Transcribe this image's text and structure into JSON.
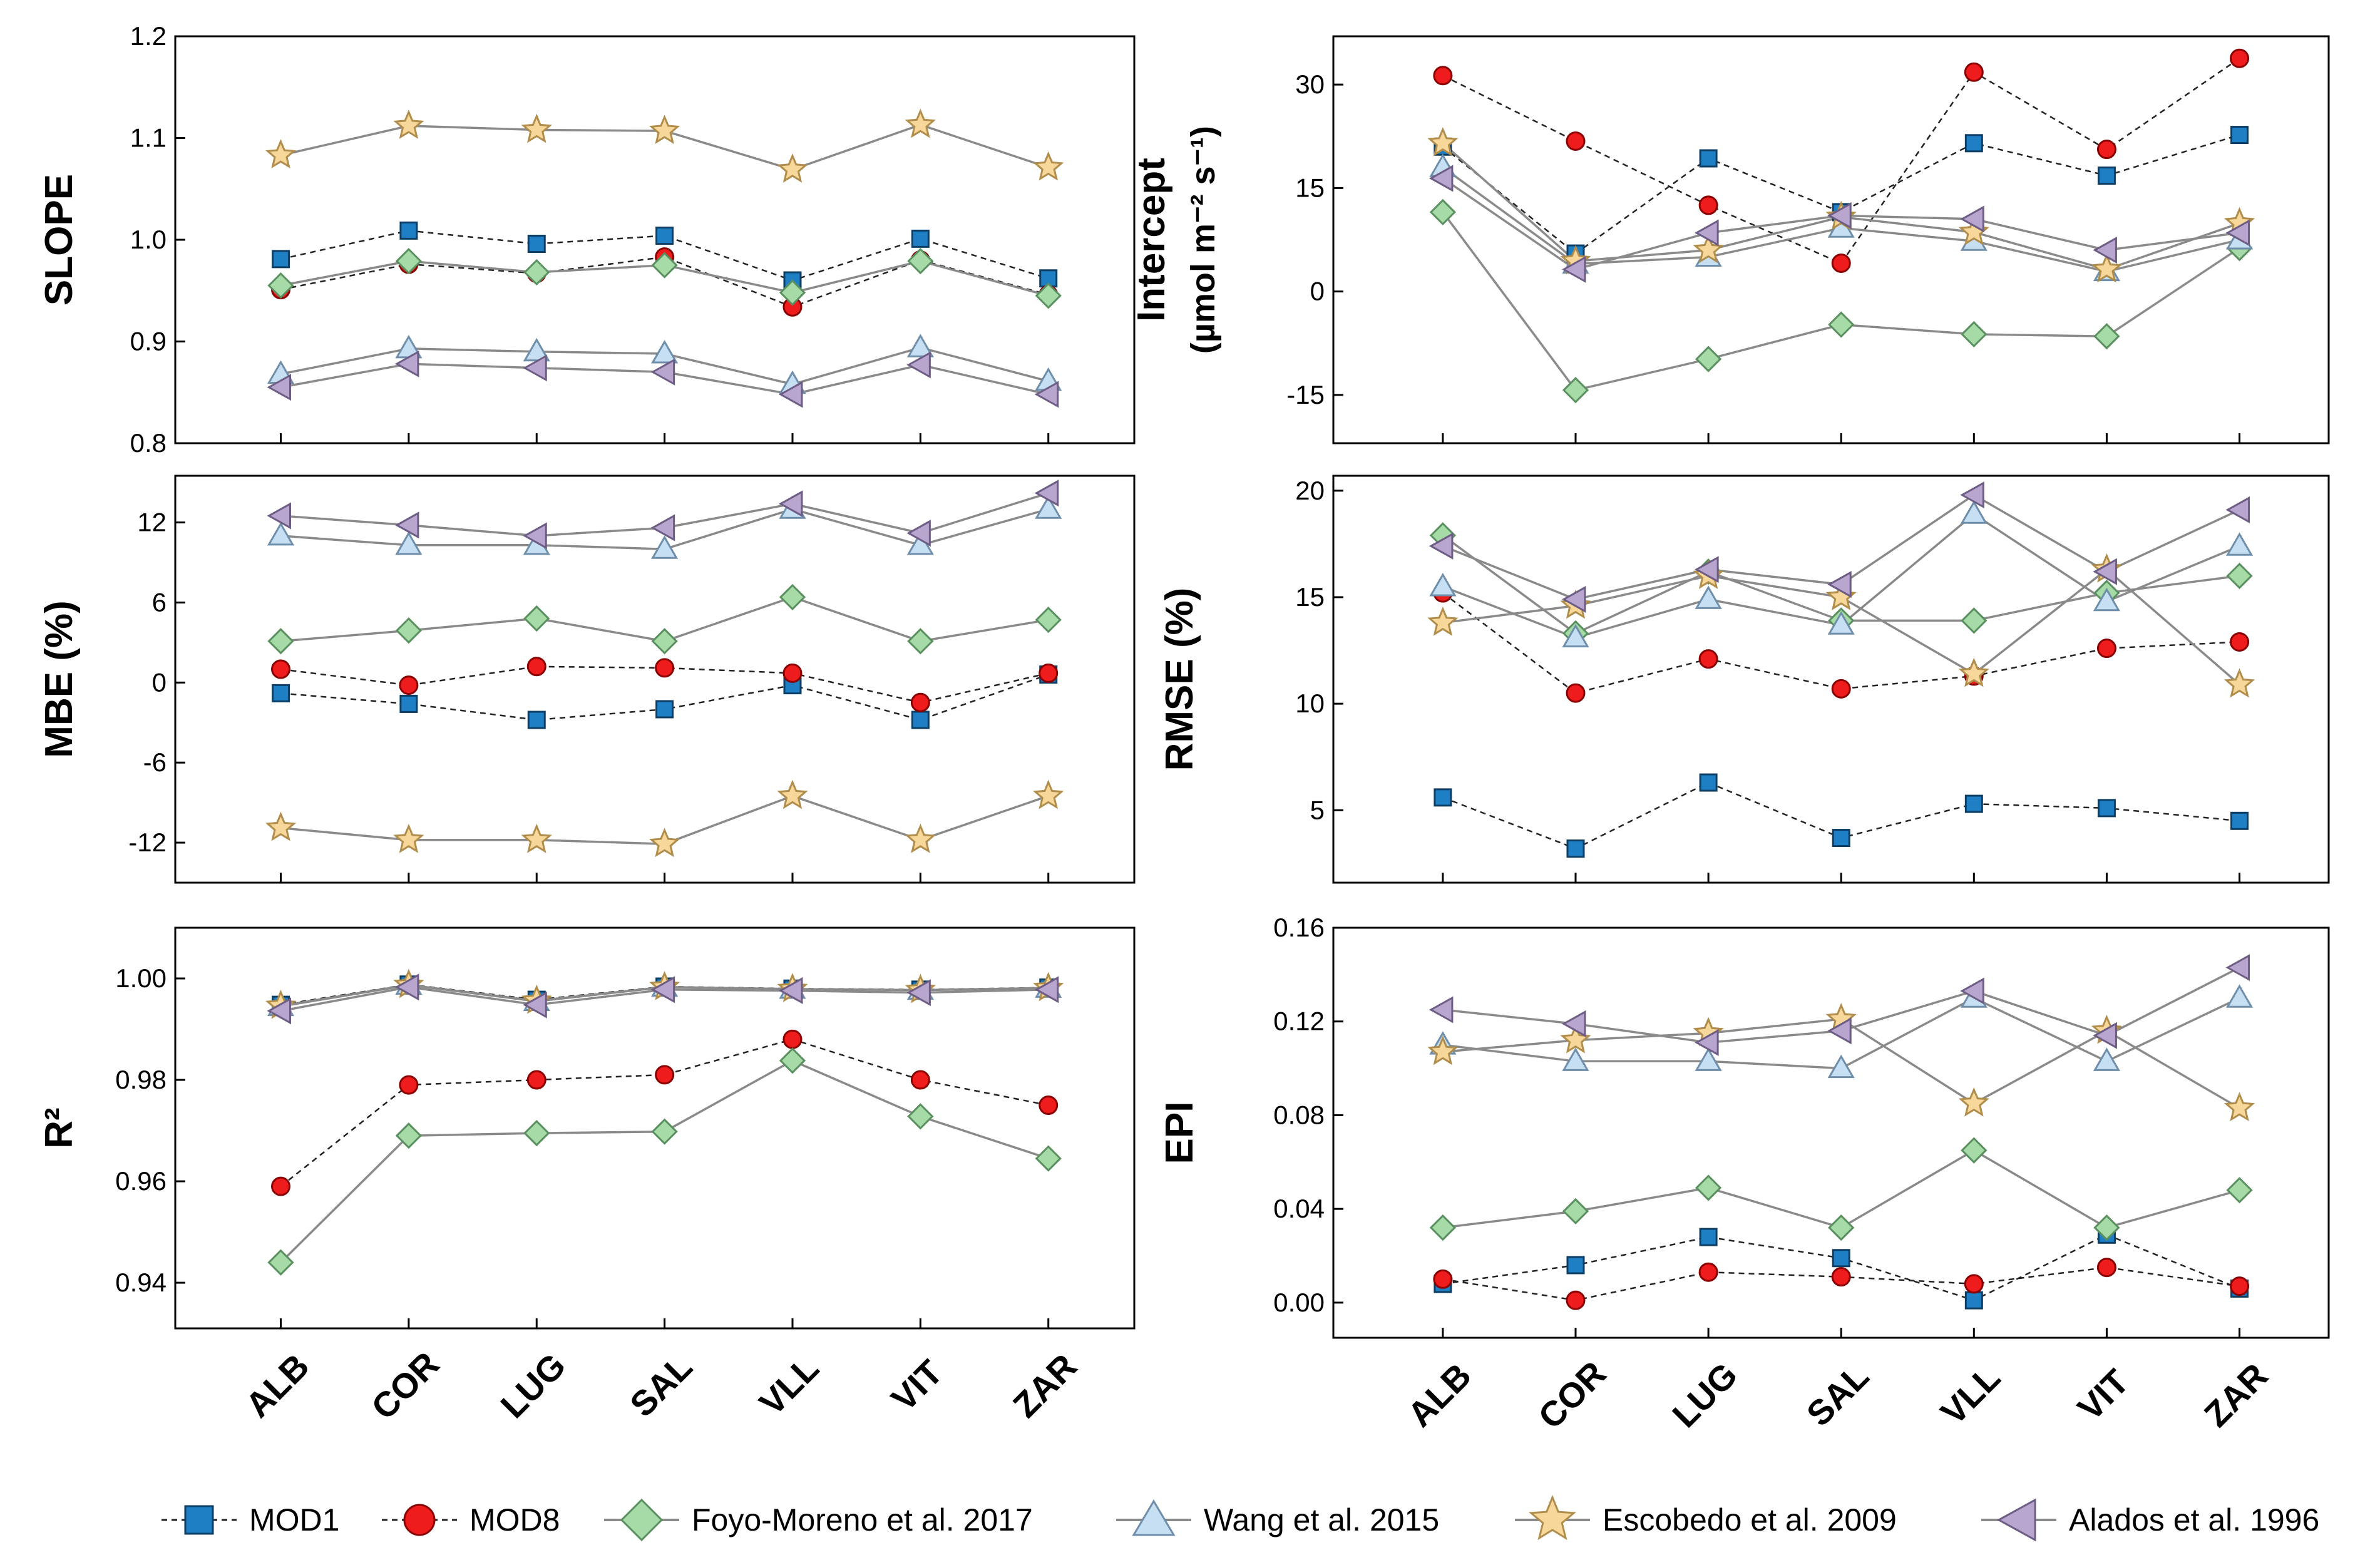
{
  "figure": {
    "categories": [
      "ALB",
      "COR",
      "LUG",
      "SAL",
      "VLL",
      "VIT",
      "ZAR"
    ],
    "series_styles": [
      {
        "name": "MOD1",
        "marker": "square",
        "fill": "#1e7fc4",
        "stroke": "#0d3f66",
        "line": "#222222",
        "dash": true
      },
      {
        "name": "MOD8",
        "marker": "circle",
        "fill": "#ee1c1c",
        "stroke": "#8a0000",
        "line": "#222222",
        "dash": true
      },
      {
        "name": "Foyo-Moreno et al. 2017",
        "marker": "diamond",
        "fill": "#a6dba8",
        "stroke": "#5a9060",
        "line": "#8a8a8a",
        "dash": false
      },
      {
        "name": "Wang et al. 2015",
        "marker": "triangle-up",
        "fill": "#c6dff3",
        "stroke": "#6f8eaa",
        "line": "#8a8a8a",
        "dash": false
      },
      {
        "name": "Escobedo et al. 2009",
        "marker": "star",
        "fill": "#f7d79a",
        "stroke": "#b08d4a",
        "line": "#8a8a8a",
        "dash": false
      },
      {
        "name": "Alados et al. 1996",
        "marker": "triangle-left",
        "fill": "#b9a6cf",
        "stroke": "#6d5d85",
        "line": "#8a8a8a",
        "dash": false
      }
    ]
  },
  "chart_data": [
    {
      "type": "line",
      "ylabel": "SLOPE",
      "ylim": [
        0.8,
        1.2
      ],
      "yticks": [
        0.8,
        0.9,
        1.0,
        1.1,
        1.2
      ],
      "ytick_labels": [
        "0.8",
        "0.9",
        "1.0",
        "1.1",
        "1.2"
      ],
      "categories": [
        "ALB",
        "COR",
        "LUG",
        "SAL",
        "VLL",
        "VIT",
        "ZAR"
      ],
      "series": [
        {
          "name": "MOD1",
          "values": [
            0.981,
            1.009,
            0.996,
            1.004,
            0.96,
            1.001,
            0.962
          ]
        },
        {
          "name": "MOD8",
          "values": [
            0.951,
            0.976,
            0.967,
            0.983,
            0.934,
            0.98,
            0.946
          ]
        },
        {
          "name": "Foyo-Moreno et al. 2017",
          "values": [
            0.955,
            0.979,
            0.968,
            0.975,
            0.948,
            0.979,
            0.945
          ]
        },
        {
          "name": "Wang et al. 2015",
          "values": [
            0.868,
            0.893,
            0.89,
            0.888,
            0.858,
            0.894,
            0.861
          ]
        },
        {
          "name": "Escobedo et al. 2009",
          "values": [
            1.083,
            1.112,
            1.108,
            1.107,
            1.069,
            1.113,
            1.071
          ]
        },
        {
          "name": "Alados et al. 1996",
          "values": [
            0.855,
            0.878,
            0.874,
            0.87,
            0.848,
            0.877,
            0.848
          ]
        }
      ]
    },
    {
      "type": "line",
      "ylabel": "Intercept",
      "ylabel_line2": "(µmol m⁻² s⁻¹)",
      "ylim": [
        -22,
        37
      ],
      "yticks": [
        -15,
        0,
        15,
        30
      ],
      "ytick_labels": [
        "-15",
        "0",
        "15",
        "30"
      ],
      "categories": [
        "ALB",
        "COR",
        "LUG",
        "SAL",
        "VLL",
        "VIT",
        "ZAR"
      ],
      "series": [
        {
          "name": "MOD1",
          "values": [
            21.0,
            5.5,
            19.3,
            11.5,
            21.5,
            16.8,
            22.7
          ]
        },
        {
          "name": "MOD8",
          "values": [
            31.3,
            21.8,
            12.5,
            4.1,
            31.8,
            20.6,
            33.8
          ]
        },
        {
          "name": "Foyo-Moreno et al. 2017",
          "values": [
            11.5,
            -14.3,
            -9.8,
            -4.8,
            -6.2,
            -6.5,
            6.3
          ]
        },
        {
          "name": "Wang et al. 2015",
          "values": [
            18.0,
            4.0,
            5.0,
            9.2,
            7.3,
            2.9,
            7.5
          ]
        },
        {
          "name": "Escobedo et al. 2009",
          "values": [
            21.5,
            4.4,
            6.0,
            10.8,
            8.6,
            3.2,
            9.9
          ]
        },
        {
          "name": "Alados et al. 1996",
          "values": [
            16.4,
            3.2,
            8.5,
            11.0,
            10.5,
            6.0,
            8.5
          ]
        }
      ]
    },
    {
      "type": "line",
      "ylabel": "MBE (%)",
      "ylim": [
        -15,
        15.5
      ],
      "yticks": [
        -12,
        -6,
        0,
        6,
        12
      ],
      "ytick_labels": [
        "-12",
        "-6",
        "0",
        "6",
        "12"
      ],
      "categories": [
        "ALB",
        "COR",
        "LUG",
        "SAL",
        "VLL",
        "VIT",
        "ZAR"
      ],
      "series": [
        {
          "name": "MOD1",
          "values": [
            -0.8,
            -1.6,
            -2.8,
            -2.0,
            -0.2,
            -2.8,
            0.6
          ]
        },
        {
          "name": "MOD8",
          "values": [
            1.0,
            -0.2,
            1.2,
            1.1,
            0.7,
            -1.5,
            0.7
          ]
        },
        {
          "name": "Foyo-Moreno et al. 2017",
          "values": [
            3.1,
            3.9,
            4.8,
            3.1,
            6.4,
            3.1,
            4.7
          ]
        },
        {
          "name": "Wang et al. 2015",
          "values": [
            11.0,
            10.3,
            10.3,
            10.0,
            13.0,
            10.3,
            13.0
          ]
        },
        {
          "name": "Escobedo et al. 2009",
          "values": [
            -10.9,
            -11.8,
            -11.8,
            -12.1,
            -8.5,
            -11.8,
            -8.5
          ]
        },
        {
          "name": "Alados et al. 1996",
          "values": [
            12.5,
            11.8,
            11.0,
            11.6,
            13.4,
            11.2,
            14.2
          ]
        }
      ]
    },
    {
      "type": "line",
      "ylabel": "RMSE (%)",
      "ylim": [
        1.6,
        20.7
      ],
      "yticks": [
        5,
        10,
        15,
        20
      ],
      "ytick_labels": [
        "5",
        "10",
        "15",
        "20"
      ],
      "categories": [
        "ALB",
        "COR",
        "LUG",
        "SAL",
        "VLL",
        "VIT",
        "ZAR"
      ],
      "series": [
        {
          "name": "MOD1",
          "values": [
            5.6,
            3.2,
            6.3,
            3.7,
            5.3,
            5.1,
            4.5
          ]
        },
        {
          "name": "MOD8",
          "values": [
            15.2,
            10.5,
            12.1,
            10.7,
            11.3,
            12.6,
            12.9
          ]
        },
        {
          "name": "Foyo-Moreno et al. 2017",
          "values": [
            17.9,
            13.3,
            16.2,
            13.9,
            13.9,
            15.2,
            16.0
          ]
        },
        {
          "name": "Wang et al. 2015",
          "values": [
            15.5,
            13.1,
            14.9,
            13.7,
            18.9,
            14.8,
            17.4
          ]
        },
        {
          "name": "Escobedo et al. 2009",
          "values": [
            13.8,
            14.6,
            16.0,
            15.0,
            11.4,
            16.3,
            10.9
          ]
        },
        {
          "name": "Alados et al. 1996",
          "values": [
            17.4,
            14.9,
            16.3,
            15.6,
            19.8,
            16.2,
            19.1
          ]
        }
      ]
    },
    {
      "type": "line",
      "ylabel": "R²",
      "ylim": [
        0.931,
        1.01
      ],
      "yticks": [
        0.94,
        0.96,
        0.98,
        1.0
      ],
      "ytick_labels": [
        "0.94",
        "0.96",
        "0.98",
        "1.00"
      ],
      "categories": [
        "ALB",
        "COR",
        "LUG",
        "SAL",
        "VLL",
        "VIT",
        "ZAR"
      ],
      "series": [
        {
          "name": "MOD1",
          "values": [
            0.9948,
            0.9988,
            0.9958,
            0.9984,
            0.998,
            0.9978,
            0.9982
          ]
        },
        {
          "name": "MOD8",
          "values": [
            0.959,
            0.979,
            0.98,
            0.981,
            0.988,
            0.98,
            0.975
          ]
        },
        {
          "name": "Foyo-Moreno et al. 2017",
          "values": [
            0.944,
            0.969,
            0.9695,
            0.9698,
            0.9838,
            0.9728,
            0.9645
          ]
        },
        {
          "name": "Wang et al. 2015",
          "values": [
            0.9945,
            0.9987,
            0.9955,
            0.9983,
            0.9979,
            0.9977,
            0.9981
          ]
        },
        {
          "name": "Escobedo et al. 2009",
          "values": [
            0.9946,
            0.9987,
            0.9956,
            0.9983,
            0.9979,
            0.9977,
            0.9981
          ]
        },
        {
          "name": "Alados et al. 1996",
          "values": [
            0.9936,
            0.9983,
            0.9948,
            0.9978,
            0.9976,
            0.9972,
            0.9978
          ]
        }
      ]
    },
    {
      "type": "line",
      "ylabel": "EPI",
      "ylim": [
        -0.015,
        0.16
      ],
      "yticks": [
        0.0,
        0.04,
        0.08,
        0.12,
        0.16
      ],
      "ytick_labels": [
        "0.00",
        "0.04",
        "0.08",
        "0.12",
        "0.16"
      ],
      "categories": [
        "ALB",
        "COR",
        "LUG",
        "SAL",
        "VLL",
        "VIT",
        "ZAR"
      ],
      "series": [
        {
          "name": "MOD1",
          "values": [
            0.008,
            0.016,
            0.028,
            0.019,
            0.001,
            0.029,
            0.006
          ]
        },
        {
          "name": "MOD8",
          "values": [
            0.01,
            0.001,
            0.013,
            0.011,
            0.008,
            0.015,
            0.007
          ]
        },
        {
          "name": "Foyo-Moreno et al. 2017",
          "values": [
            0.032,
            0.039,
            0.049,
            0.032,
            0.065,
            0.032,
            0.048
          ]
        },
        {
          "name": "Wang et al. 2015",
          "values": [
            0.11,
            0.103,
            0.103,
            0.1,
            0.13,
            0.103,
            0.13
          ]
        },
        {
          "name": "Escobedo et al. 2009",
          "values": [
            0.107,
            0.112,
            0.115,
            0.121,
            0.085,
            0.116,
            0.083
          ]
        },
        {
          "name": "Alados et al. 1996",
          "values": [
            0.125,
            0.119,
            0.111,
            0.116,
            0.133,
            0.114,
            0.143
          ]
        }
      ]
    }
  ],
  "legend": {
    "items": [
      "MOD1",
      "MOD8",
      "Foyo-Moreno et al. 2017",
      "Wang et al. 2015",
      "Escobedo et al. 2009",
      "Alados et al. 1996"
    ]
  }
}
